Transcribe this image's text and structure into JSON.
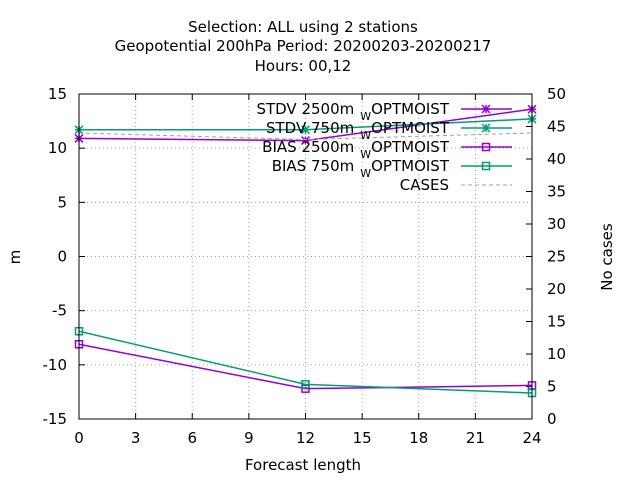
{
  "chart_data": {
    "type": "line",
    "title": [
      "Selection: ALL using     2 stations",
      "Geopotential 200hPa   Period: 20200203-20200217",
      "Hours:  00,12"
    ],
    "xlabel": "Forecast length",
    "ylabel": "m",
    "y2label": "No cases",
    "xlim": [
      0,
      24
    ],
    "ylim": [
      -15,
      15
    ],
    "y2lim": [
      0,
      50
    ],
    "xticks": [
      "0",
      "3",
      "6",
      "9",
      "12",
      "15",
      "18",
      "21",
      "24"
    ],
    "yticks": [
      "-15",
      "-10",
      "-5",
      "0",
      "5",
      "10",
      "15"
    ],
    "y2ticks": [
      "0",
      "5",
      "10",
      "15",
      "20",
      "25",
      "30",
      "35",
      "40",
      "45",
      "50"
    ],
    "grid": true,
    "legend_position": "top-right",
    "colors": {
      "purple": "#9400d3",
      "green": "#009e73",
      "gray": "#a0a0a0"
    },
    "series": [
      {
        "name": "STDV 2500m",
        "name_sub": "W",
        "name_suffix": "OPTMOIST",
        "x": [
          0,
          12,
          24
        ],
        "values": [
          10.9,
          10.7,
          13.6
        ],
        "color": "#9400d3",
        "marker": "x-star"
      },
      {
        "name": "STDV 750m",
        "name_sub": "W",
        "name_suffix": "OPTMOIST",
        "x": [
          0,
          12,
          24
        ],
        "values": [
          11.7,
          11.7,
          12.7
        ],
        "color": "#009e73",
        "marker": "x-star"
      },
      {
        "name": "BIAS 2500m",
        "name_sub": "W",
        "name_suffix": "OPTMOIST",
        "x": [
          0,
          12,
          24
        ],
        "values": [
          -8.1,
          -12.2,
          -11.9
        ],
        "color": "#9400d3",
        "marker": "square"
      },
      {
        "name": "BIAS 750m",
        "name_sub": "W",
        "name_suffix": "OPTMOIST",
        "x": [
          0,
          12,
          24
        ],
        "values": [
          -6.9,
          -11.8,
          -12.6
        ],
        "color": "#009e73",
        "marker": "square"
      },
      {
        "name": "CASES",
        "name_sub": "",
        "name_suffix": "",
        "x": [
          0,
          12,
          24
        ],
        "values": [
          44,
          43,
          44
        ],
        "axis": "right",
        "color": "#a0a0a0",
        "dashed": true
      }
    ]
  }
}
